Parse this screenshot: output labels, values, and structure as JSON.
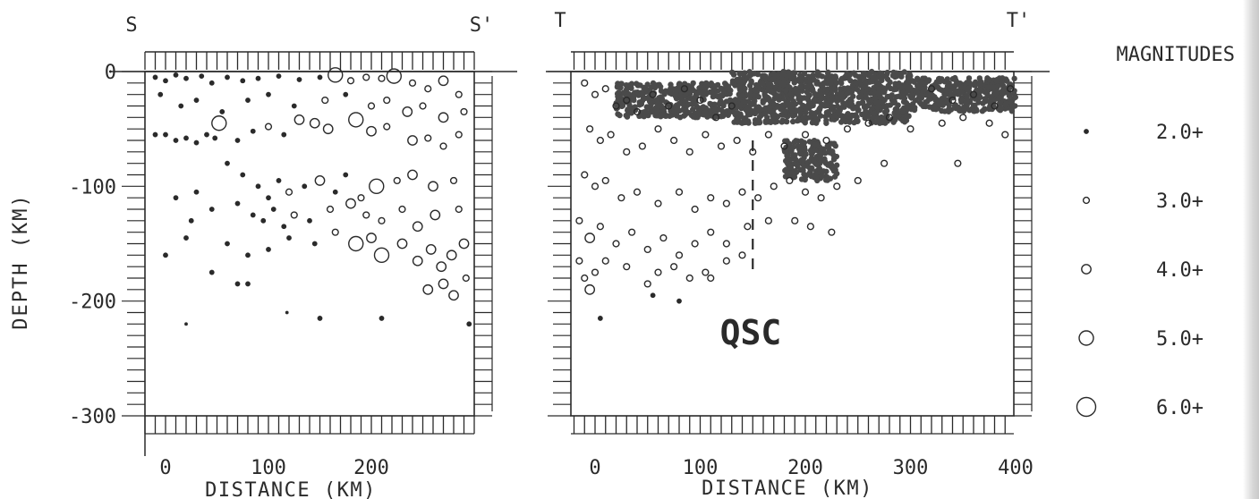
{
  "chart_data": [
    {
      "type": "scatter",
      "title": "",
      "corner_labels": {
        "left": "S",
        "right": "S'"
      },
      "xlabel": "DISTANCE (KM)",
      "ylabel": "DEPTH (KM)",
      "xlim": [
        -20,
        300
      ],
      "ylim": [
        -300,
        0
      ],
      "xticks": [
        "0",
        "100",
        "200"
      ],
      "yticks": [
        "0",
        "-100",
        "-200",
        "-300"
      ],
      "marker": "magnitude-scaled circles",
      "points": [
        [
          -10,
          -5,
          2
        ],
        [
          0,
          -8,
          2
        ],
        [
          10,
          -3,
          2
        ],
        [
          20,
          -6,
          2
        ],
        [
          35,
          -4,
          2
        ],
        [
          45,
          -10,
          2
        ],
        [
          60,
          -5,
          2
        ],
        [
          75,
          -8,
          2
        ],
        [
          90,
          -6,
          2
        ],
        [
          110,
          -4,
          2
        ],
        [
          130,
          -7,
          2
        ],
        [
          150,
          -5,
          2
        ],
        [
          165,
          -3,
          5
        ],
        [
          180,
          -8,
          3
        ],
        [
          195,
          -5,
          3
        ],
        [
          210,
          -6,
          3
        ],
        [
          222,
          -4,
          5
        ],
        [
          240,
          -10,
          3
        ],
        [
          255,
          -15,
          3
        ],
        [
          270,
          -8,
          4
        ],
        [
          285,
          -20,
          3
        ],
        [
          -5,
          -20,
          2
        ],
        [
          15,
          -30,
          2
        ],
        [
          30,
          -25,
          2
        ],
        [
          55,
          -35,
          2
        ],
        [
          80,
          -25,
          2
        ],
        [
          100,
          -20,
          2
        ],
        [
          125,
          -30,
          2
        ],
        [
          155,
          -25,
          3
        ],
        [
          175,
          -20,
          2
        ],
        [
          200,
          -30,
          3
        ],
        [
          215,
          -25,
          3
        ],
        [
          235,
          -35,
          4
        ],
        [
          250,
          -30,
          3
        ],
        [
          270,
          -40,
          4
        ],
        [
          290,
          -35,
          3
        ],
        [
          0,
          -55,
          2
        ],
        [
          10,
          -60,
          2
        ],
        [
          20,
          -58,
          2
        ],
        [
          30,
          -62,
          2
        ],
        [
          40,
          -55,
          2
        ],
        [
          48,
          -58,
          2
        ],
        [
          52,
          -45,
          5
        ],
        [
          70,
          -60,
          2
        ],
        [
          85,
          -52,
          2
        ],
        [
          100,
          -48,
          3
        ],
        [
          115,
          -55,
          2
        ],
        [
          130,
          -42,
          4
        ],
        [
          145,
          -45,
          4
        ],
        [
          158,
          -50,
          4
        ],
        [
          185,
          -42,
          5
        ],
        [
          200,
          -52,
          4
        ],
        [
          215,
          -48,
          3
        ],
        [
          240,
          -60,
          4
        ],
        [
          255,
          -58,
          3
        ],
        [
          270,
          -65,
          3
        ],
        [
          285,
          -55,
          3
        ],
        [
          -10,
          -55,
          2
        ],
        [
          30,
          -105,
          2
        ],
        [
          60,
          -80,
          2
        ],
        [
          75,
          -90,
          2
        ],
        [
          90,
          -100,
          2
        ],
        [
          100,
          -110,
          2
        ],
        [
          110,
          -95,
          2
        ],
        [
          120,
          -105,
          3
        ],
        [
          135,
          -100,
          2
        ],
        [
          150,
          -95,
          4
        ],
        [
          165,
          -105,
          2
        ],
        [
          175,
          -90,
          2
        ],
        [
          190,
          -110,
          3
        ],
        [
          205,
          -100,
          5
        ],
        [
          225,
          -95,
          3
        ],
        [
          240,
          -90,
          4
        ],
        [
          260,
          -100,
          4
        ],
        [
          280,
          -95,
          3
        ],
        [
          10,
          -110,
          2
        ],
        [
          25,
          -130,
          2
        ],
        [
          45,
          -120,
          2
        ],
        [
          70,
          -115,
          2
        ],
        [
          85,
          -125,
          2
        ],
        [
          95,
          -130,
          2
        ],
        [
          105,
          -120,
          2
        ],
        [
          115,
          -135,
          2
        ],
        [
          125,
          -125,
          3
        ],
        [
          140,
          -130,
          2
        ],
        [
          160,
          -120,
          3
        ],
        [
          180,
          -115,
          4
        ],
        [
          195,
          -125,
          3
        ],
        [
          210,
          -130,
          3
        ],
        [
          230,
          -120,
          3
        ],
        [
          245,
          -135,
          4
        ],
        [
          262,
          -125,
          4
        ],
        [
          285,
          -120,
          3
        ],
        [
          0,
          -160,
          2
        ],
        [
          20,
          -145,
          2
        ],
        [
          45,
          -175,
          2
        ],
        [
          60,
          -150,
          2
        ],
        [
          80,
          -160,
          2
        ],
        [
          100,
          -155,
          2
        ],
        [
          120,
          -145,
          2
        ],
        [
          145,
          -150,
          2
        ],
        [
          165,
          -140,
          3
        ],
        [
          185,
          -150,
          5
        ],
        [
          200,
          -145,
          4
        ],
        [
          210,
          -160,
          5
        ],
        [
          230,
          -150,
          4
        ],
        [
          245,
          -165,
          4
        ],
        [
          258,
          -155,
          4
        ],
        [
          268,
          -170,
          4
        ],
        [
          278,
          -160,
          4
        ],
        [
          290,
          -150,
          4
        ],
        [
          70,
          -185,
          2
        ],
        [
          80,
          -185,
          2
        ],
        [
          150,
          -215,
          2
        ],
        [
          210,
          -215,
          2
        ],
        [
          255,
          -190,
          4
        ],
        [
          270,
          -185,
          4
        ],
        [
          280,
          -195,
          4
        ],
        [
          292,
          -180,
          3
        ],
        [
          20,
          -220,
          1
        ],
        [
          118,
          -210,
          1
        ],
        [
          295,
          -220,
          2
        ]
      ]
    },
    {
      "type": "scatter",
      "title": "",
      "corner_labels": {
        "left": "T",
        "right": "T'"
      },
      "xlabel": "DISTANCE (KM)",
      "ylabel": "",
      "xlim": [
        -20,
        400
      ],
      "ylim": [
        -300,
        0
      ],
      "xticks": [
        "0",
        "100",
        "200",
        "300",
        "400"
      ],
      "yticks": [],
      "marker": "magnitude-scaled circles",
      "dense_regions": [
        {
          "x": [
            130,
            300
          ],
          "y": [
            -45,
            0
          ]
        },
        {
          "x": [
            20,
            130
          ],
          "y": [
            -40,
            -10
          ]
        },
        {
          "x": [
            300,
            400
          ],
          "y": [
            -35,
            -5
          ]
        },
        {
          "x": [
            180,
            230
          ],
          "y": [
            -95,
            -60
          ]
        }
      ],
      "points": [
        [
          -10,
          -10,
          3
        ],
        [
          0,
          -20,
          3
        ],
        [
          10,
          -15,
          3
        ],
        [
          20,
          -30,
          3
        ],
        [
          30,
          -25,
          3
        ],
        [
          40,
          -35,
          3
        ],
        [
          55,
          -20,
          3
        ],
        [
          70,
          -30,
          3
        ],
        [
          85,
          -15,
          3
        ],
        [
          100,
          -25,
          3
        ],
        [
          115,
          -40,
          3
        ],
        [
          130,
          -30,
          3
        ],
        [
          320,
          -15,
          3
        ],
        [
          340,
          -25,
          3
        ],
        [
          360,
          -20,
          3
        ],
        [
          380,
          -30,
          3
        ],
        [
          395,
          -15,
          3
        ],
        [
          -5,
          -50,
          3
        ],
        [
          5,
          -60,
          3
        ],
        [
          15,
          -55,
          3
        ],
        [
          30,
          -70,
          3
        ],
        [
          45,
          -65,
          3
        ],
        [
          60,
          -50,
          3
        ],
        [
          75,
          -60,
          3
        ],
        [
          90,
          -70,
          3
        ],
        [
          105,
          -55,
          3
        ],
        [
          120,
          -65,
          3
        ],
        [
          135,
          -60,
          3
        ],
        [
          150,
          -70,
          3
        ],
        [
          165,
          -55,
          3
        ],
        [
          180,
          -65,
          3
        ],
        [
          200,
          -55,
          3
        ],
        [
          220,
          -60,
          3
        ],
        [
          240,
          -50,
          3
        ],
        [
          260,
          -45,
          3
        ],
        [
          280,
          -40,
          3
        ],
        [
          300,
          -50,
          3
        ],
        [
          330,
          -45,
          3
        ],
        [
          350,
          -40,
          3
        ],
        [
          375,
          -45,
          3
        ],
        [
          390,
          -55,
          3
        ],
        [
          -10,
          -90,
          3
        ],
        [
          0,
          -100,
          3
        ],
        [
          10,
          -95,
          3
        ],
        [
          25,
          -110,
          3
        ],
        [
          40,
          -105,
          3
        ],
        [
          60,
          -115,
          3
        ],
        [
          80,
          -105,
          3
        ],
        [
          95,
          -120,
          3
        ],
        [
          110,
          -110,
          3
        ],
        [
          125,
          -115,
          3
        ],
        [
          140,
          -105,
          3
        ],
        [
          155,
          -110,
          3
        ],
        [
          170,
          -100,
          3
        ],
        [
          185,
          -95,
          3
        ],
        [
          200,
          -105,
          3
        ],
        [
          215,
          -110,
          3
        ],
        [
          230,
          -100,
          3
        ],
        [
          250,
          -95,
          3
        ],
        [
          275,
          -80,
          3
        ],
        [
          345,
          -80,
          3
        ],
        [
          -15,
          -130,
          3
        ],
        [
          -5,
          -145,
          4
        ],
        [
          5,
          -135,
          3
        ],
        [
          20,
          -150,
          3
        ],
        [
          35,
          -140,
          3
        ],
        [
          50,
          -155,
          3
        ],
        [
          65,
          -145,
          3
        ],
        [
          80,
          -160,
          3
        ],
        [
          95,
          -150,
          3
        ],
        [
          110,
          -140,
          3
        ],
        [
          125,
          -150,
          3
        ],
        [
          145,
          -135,
          3
        ],
        [
          165,
          -130,
          3
        ],
        [
          190,
          -130,
          3
        ],
        [
          205,
          -135,
          3
        ],
        [
          225,
          -140,
          3
        ],
        [
          -15,
          -165,
          3
        ],
        [
          -10,
          -180,
          3
        ],
        [
          0,
          -175,
          3
        ],
        [
          -5,
          -190,
          4
        ],
        [
          10,
          -165,
          3
        ],
        [
          30,
          -170,
          3
        ],
        [
          50,
          -185,
          3
        ],
        [
          60,
          -175,
          3
        ],
        [
          75,
          -170,
          3
        ],
        [
          90,
          -180,
          3
        ],
        [
          105,
          -175,
          3
        ],
        [
          125,
          -165,
          3
        ],
        [
          140,
          -160,
          3
        ],
        [
          5,
          -215,
          2
        ],
        [
          55,
          -195,
          2
        ],
        [
          80,
          -200,
          2
        ],
        [
          110,
          -180,
          3
        ]
      ],
      "annotations": [
        {
          "text": "QSC",
          "x": 148,
          "y": -225
        }
      ],
      "reference_line": {
        "style": "dashed",
        "x": 150,
        "y": [
          -180,
          -60
        ]
      }
    }
  ],
  "legend": {
    "title": "MAGNITUDES",
    "placement": "right",
    "items": [
      {
        "label": "2.0+",
        "magnitude": 2
      },
      {
        "label": "3.0+",
        "magnitude": 3
      },
      {
        "label": "4.0+",
        "magnitude": 4
      },
      {
        "label": "5.0+",
        "magnitude": 5
      },
      {
        "label": "6.0+",
        "magnitude": 6
      }
    ]
  },
  "colors": {
    "ink": "#2a2a2a",
    "paper": "#ffffff"
  }
}
